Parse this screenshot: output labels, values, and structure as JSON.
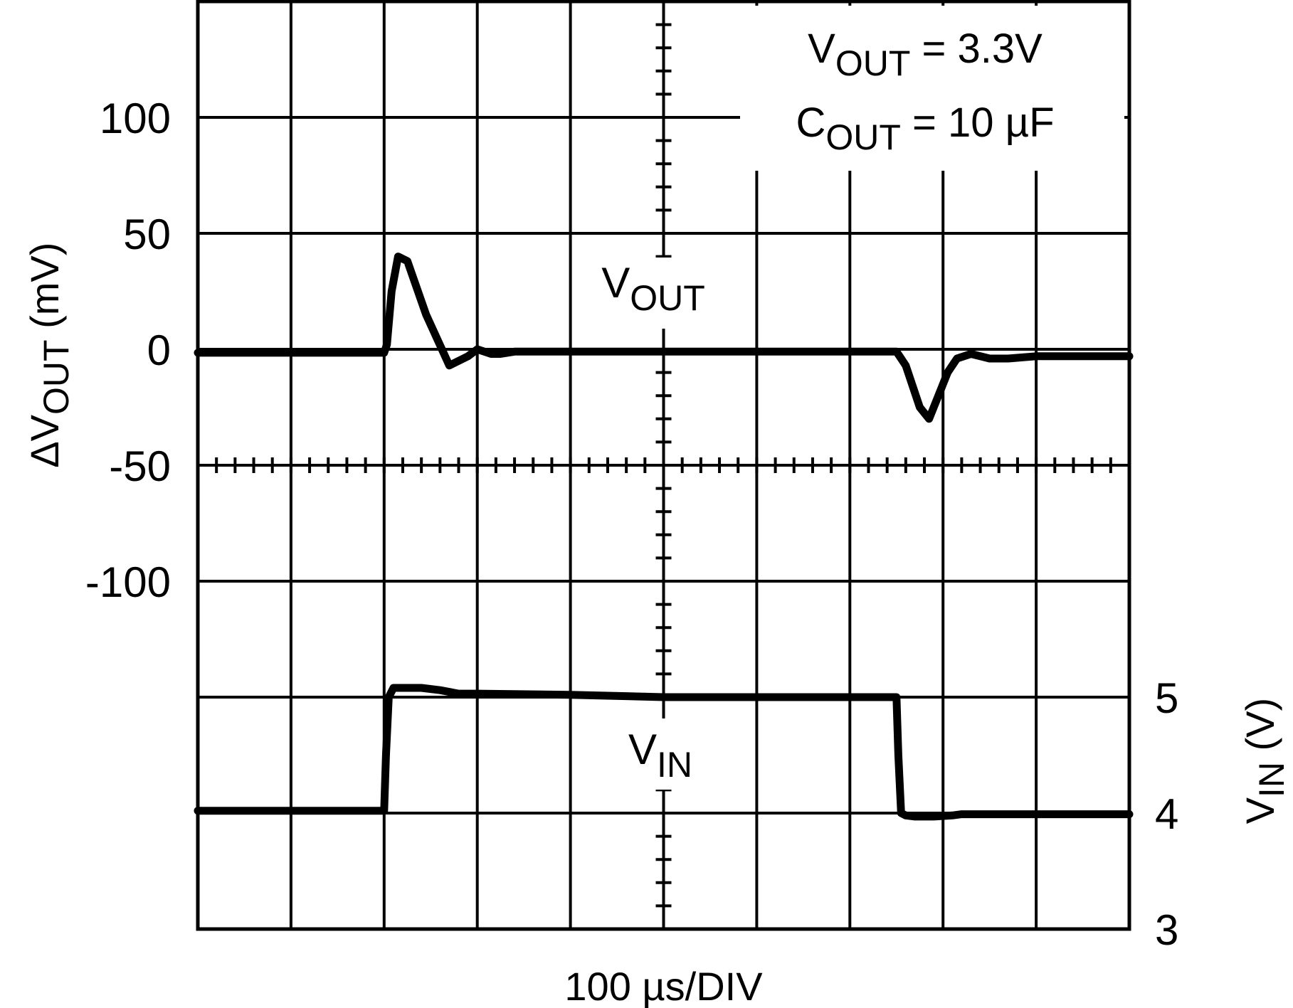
{
  "chart_data": {
    "type": "line",
    "title": "",
    "xlabel": "100 µs/DIV",
    "time_per_div_us": 100,
    "x_divisions": 10,
    "y_divisions": 8,
    "grid": true,
    "left_axis": {
      "label_prefix": "ΔV",
      "label_sub": "OUT",
      "label_suffix": " (mV)",
      "ylim": [
        -150,
        150
      ],
      "tick_labels": [
        "100",
        "50",
        "0",
        "-50",
        "-100"
      ],
      "tick_values": [
        100,
        50,
        0,
        -50,
        -100
      ]
    },
    "right_axis": {
      "label_prefix": "V",
      "label_sub": "IN",
      "label_suffix": " (V)",
      "ylim": [
        3,
        5
      ],
      "tick_labels": [
        "5",
        "4",
        "3"
      ],
      "tick_values": [
        5,
        4,
        3
      ]
    },
    "annotation_lines": [
      {
        "prefix": "V",
        "sub": "OUT",
        "suffix": " = 3.3V"
      },
      {
        "prefix": "C",
        "sub": "OUT",
        "suffix": " = 10 µF"
      }
    ],
    "series": [
      {
        "name_prefix": "V",
        "name_sub": "OUT",
        "axis": "left",
        "x_us": [
          0,
          100,
          200,
          203,
          208,
          215,
          225,
          245,
          270,
          290,
          300,
          315,
          325,
          340,
          360,
          400,
          500,
          600,
          700,
          750,
          760,
          775,
          785,
          795,
          805,
          815,
          830,
          850,
          870,
          900,
          1000
        ],
        "y": [
          -1.5,
          -1.5,
          -1.5,
          2,
          25,
          40,
          38,
          15,
          -7,
          -3,
          0,
          -2,
          -2,
          -1,
          -1,
          -1,
          -1,
          -1,
          -1,
          -1,
          -7,
          -25,
          -30,
          -20,
          -10,
          -4,
          -2,
          -4,
          -4,
          -3,
          -3
        ]
      },
      {
        "name_prefix": "V",
        "name_sub": "IN",
        "axis": "right",
        "x_us": [
          0,
          100,
          200,
          202,
          205,
          210,
          220,
          240,
          260,
          280,
          300,
          400,
          500,
          600,
          700,
          750,
          752,
          755,
          760,
          770,
          790,
          810,
          820,
          850,
          900,
          1000
        ],
        "y": [
          4.02,
          4.02,
          4.02,
          4.5,
          5.0,
          5.08,
          5.08,
          5.08,
          5.06,
          5.03,
          5.03,
          5.02,
          5.0,
          5.0,
          5.0,
          5.0,
          4.5,
          4.0,
          3.98,
          3.97,
          3.97,
          3.98,
          3.99,
          3.99,
          3.99,
          3.99
        ]
      }
    ]
  }
}
